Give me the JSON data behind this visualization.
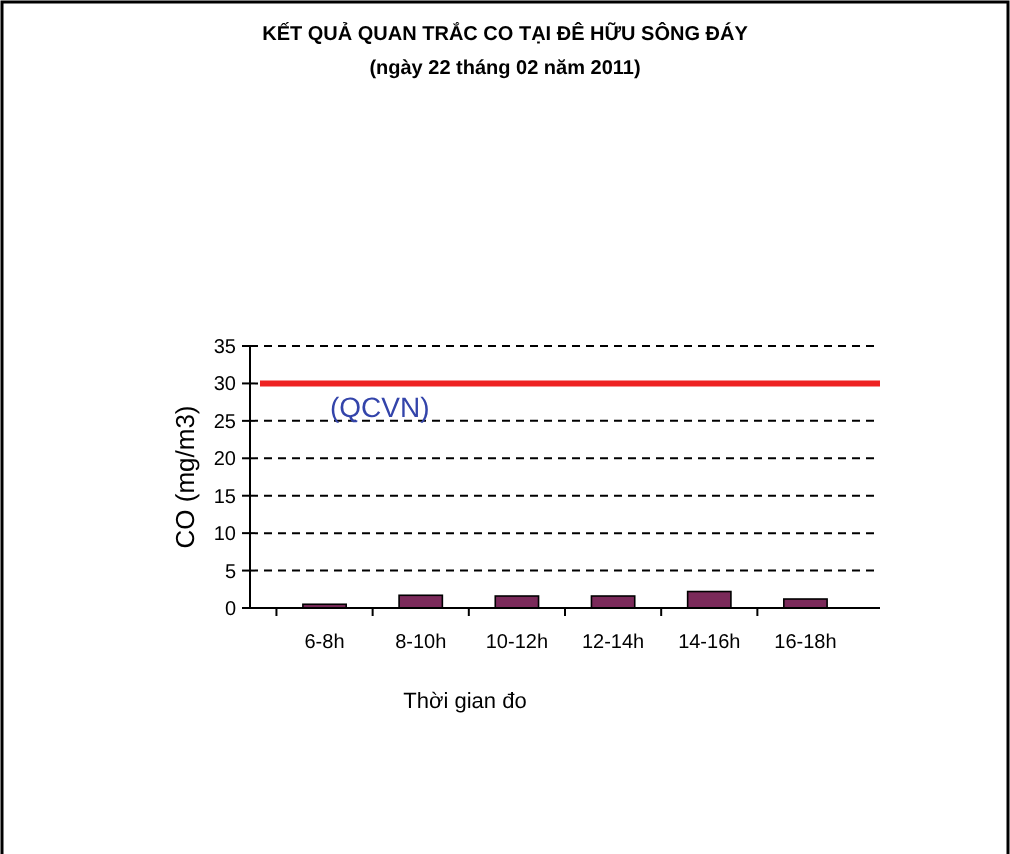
{
  "chart_data": {
    "type": "bar",
    "title": "KẾT QUẢ QUAN TRẮC CO TẠI ĐÊ HỮU SÔNG ĐÁY",
    "subtitle": "(ngày 22 tháng 02 năm 2011)",
    "xlabel": "Thời gian đo",
    "ylabel": "CO (mg/m3)",
    "categories": [
      "6-8h",
      "8-10h",
      "10-12h",
      "12-14h",
      "14-16h",
      "16-18h"
    ],
    "values": [
      0.5,
      1.7,
      1.6,
      1.6,
      2.2,
      1.2
    ],
    "color": "#7b2a5a",
    "ylim": [
      0,
      35
    ],
    "yticks": [
      0,
      5,
      10,
      15,
      20,
      25,
      30,
      35
    ],
    "grid": "y",
    "ref_lines": [
      {
        "axis": "y",
        "value": 30,
        "label": "(QCVN)",
        "color": "#ee2222"
      }
    ]
  }
}
